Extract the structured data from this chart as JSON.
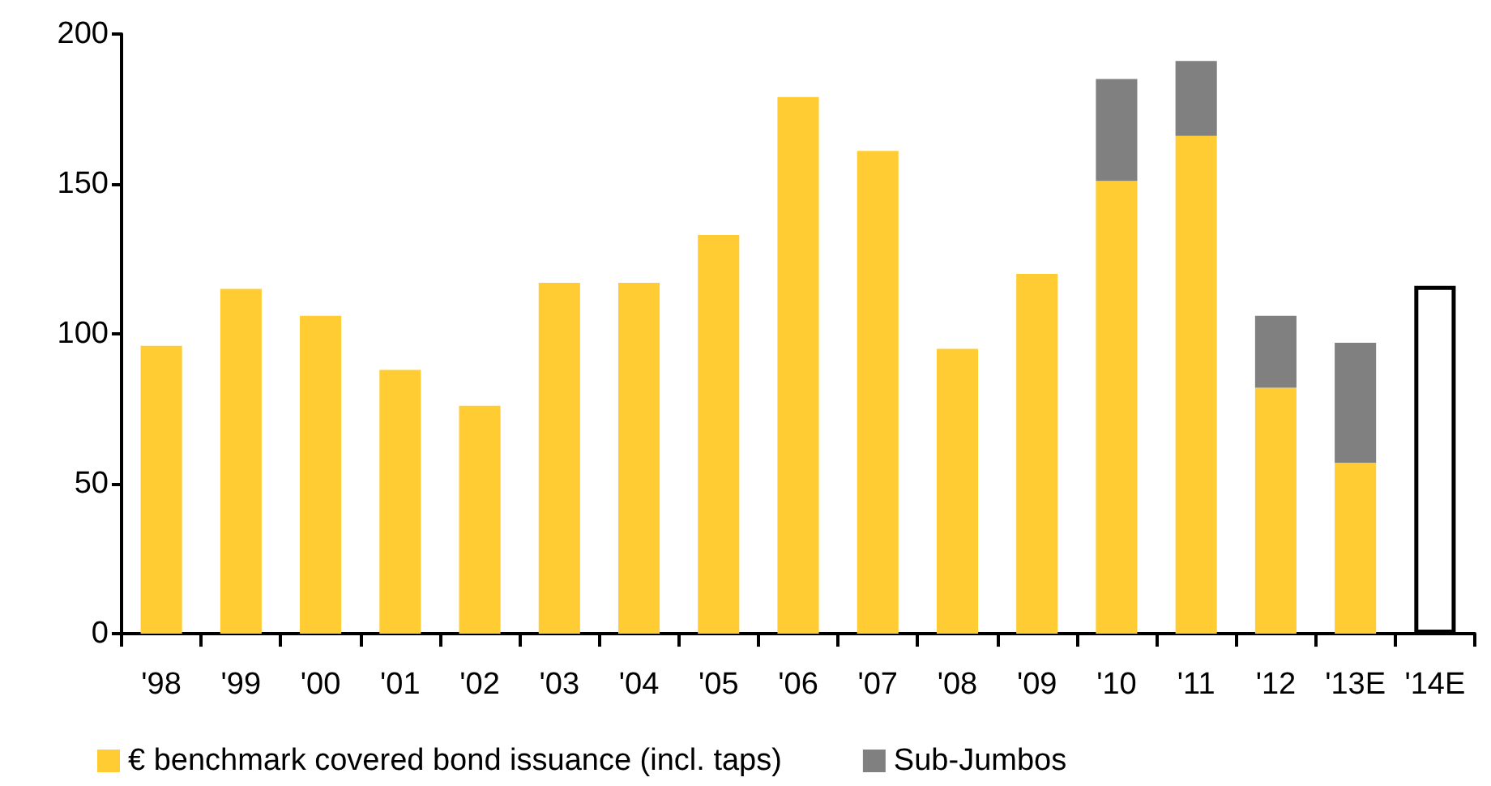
{
  "chart_data": {
    "type": "bar",
    "stacked": true,
    "categories": [
      "'98",
      "'99",
      "'00",
      "'01",
      "'02",
      "'03",
      "'04",
      "'05",
      "'06",
      "'07",
      "'08",
      "'09",
      "'10",
      "'11",
      "'12",
      "'13E",
      "'14E"
    ],
    "series": [
      {
        "name": "€ benchmark covered bond issuance (incl. taps)",
        "color": "#ffcc33",
        "values": [
          96,
          115,
          106,
          88,
          76,
          117,
          117,
          133,
          179,
          161,
          95,
          120,
          151,
          166,
          82,
          57,
          null
        ]
      },
      {
        "name": "Sub-Jumbos",
        "color": "#808080",
        "values": [
          null,
          null,
          null,
          null,
          null,
          null,
          null,
          null,
          null,
          null,
          null,
          null,
          34,
          25,
          24,
          40,
          null
        ]
      },
      {
        "color": "#000000",
        "values": [
          null,
          null,
          null,
          null,
          null,
          null,
          null,
          null,
          null,
          null,
          null,
          null,
          null,
          null,
          null,
          null,
          116
        ]
      }
    ],
    "ylim": [
      0,
      200
    ],
    "yticks": [
      0,
      50,
      100,
      150,
      200
    ],
    "grid": false,
    "legend": "bottom"
  }
}
